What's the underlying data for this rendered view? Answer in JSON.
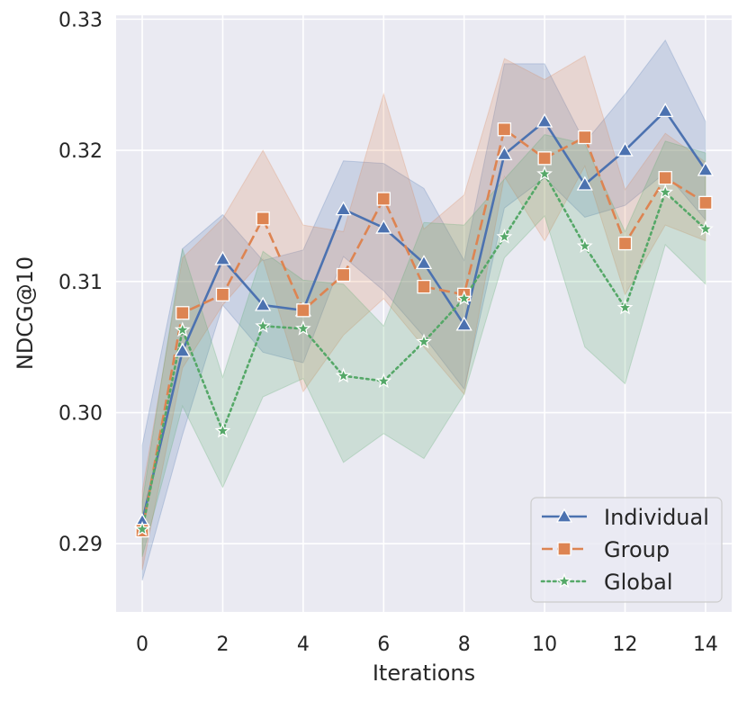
{
  "chart_data": {
    "type": "line",
    "title": "",
    "xlabel": "Iterations",
    "ylabel": "NDCG@10",
    "xlim": [
      -0.65,
      14.65
    ],
    "ylim": [
      0.2848,
      0.3303
    ],
    "xticks": [
      0,
      2,
      4,
      6,
      8,
      10,
      12,
      14
    ],
    "xtick_labels": [
      "0",
      "2",
      "4",
      "6",
      "8",
      "10",
      "12",
      "14"
    ],
    "yticks": [
      0.29,
      0.3,
      0.31,
      0.32,
      0.33
    ],
    "ytick_labels": [
      "0.29",
      "0.30",
      "0.31",
      "0.32",
      "0.33"
    ],
    "grid": true,
    "legend_position": "bottom-right",
    "x": [
      0,
      1,
      2,
      3,
      4,
      5,
      6,
      7,
      8,
      9,
      10,
      11,
      12,
      13,
      14
    ],
    "series": [
      {
        "name": "Individual",
        "color": "#4c72b0",
        "marker": "triangle",
        "linestyle": "solid",
        "values": [
          0.2917,
          0.3047,
          0.3117,
          0.3082,
          0.3078,
          0.3155,
          0.3141,
          0.3114,
          0.3067,
          0.3197,
          0.3222,
          0.3174,
          0.32,
          0.323,
          0.3185
        ],
        "lower": [
          0.2872,
          0.2983,
          0.3082,
          0.3046,
          0.3038,
          0.3119,
          0.3093,
          0.3058,
          0.3018,
          0.3156,
          0.3179,
          0.3149,
          0.3158,
          0.3183,
          0.3147
        ],
        "upper": [
          0.2975,
          0.3125,
          0.3151,
          0.3116,
          0.3124,
          0.3192,
          0.319,
          0.3171,
          0.3116,
          0.3266,
          0.3266,
          0.3206,
          0.3243,
          0.3284,
          0.3222
        ]
      },
      {
        "name": "Group",
        "color": "#dd8452",
        "marker": "square",
        "linestyle": "dashed",
        "values": [
          0.291,
          0.3076,
          0.309,
          0.3148,
          0.3078,
          0.3105,
          0.3163,
          0.3096,
          0.309,
          0.3216,
          0.3194,
          0.321,
          0.3129,
          0.3179,
          0.316
        ],
        "lower": [
          0.288,
          0.3034,
          0.3082,
          0.3117,
          0.3016,
          0.3059,
          0.3087,
          0.305,
          0.3014,
          0.318,
          0.3131,
          0.3188,
          0.309,
          0.3143,
          0.3131
        ],
        "upper": [
          0.294,
          0.3118,
          0.3148,
          0.32,
          0.3143,
          0.3138,
          0.3243,
          0.314,
          0.3166,
          0.327,
          0.3254,
          0.3272,
          0.317,
          0.3213,
          0.3191
        ]
      },
      {
        "name": "Global",
        "color": "#55a868",
        "marker": "star",
        "linestyle": "dotted",
        "values": [
          0.2911,
          0.3063,
          0.2986,
          0.3066,
          0.3064,
          0.3028,
          0.3024,
          0.3054,
          0.3087,
          0.3134,
          0.3182,
          0.3127,
          0.308,
          0.3168,
          0.314
        ],
        "lower": [
          0.289,
          0.3005,
          0.2943,
          0.3012,
          0.3026,
          0.2962,
          0.2984,
          0.2965,
          0.3014,
          0.3118,
          0.315,
          0.305,
          0.3022,
          0.3128,
          0.3098
        ],
        "upper": [
          0.2932,
          0.3125,
          0.3027,
          0.3123,
          0.3101,
          0.3098,
          0.3066,
          0.3145,
          0.3143,
          0.3178,
          0.3212,
          0.3205,
          0.3138,
          0.3207,
          0.3198
        ]
      }
    ]
  }
}
